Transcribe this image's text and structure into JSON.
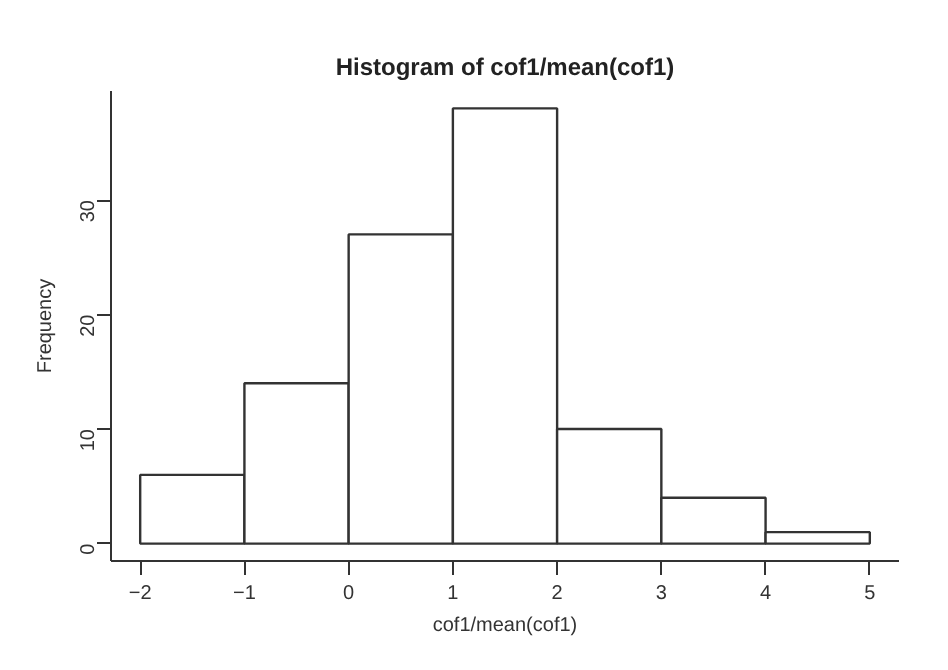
{
  "chart_data": {
    "type": "histogram",
    "title": "Histogram of cof1/mean(cof1)",
    "xlabel": "cof1/mean(cof1)",
    "ylabel": "Frequency",
    "bins": [
      -2,
      -1,
      0,
      1,
      2,
      3,
      4,
      5
    ],
    "values": [
      6,
      14,
      27,
      38,
      10,
      4,
      1
    ],
    "color": "#ffffff",
    "xlim": [
      -2.28,
      5.28
    ],
    "ylim": [
      -1.52,
      39.52
    ],
    "xticks": [
      -2,
      -1,
      0,
      1,
      2,
      3,
      4,
      5
    ],
    "yticks": [
      0,
      10,
      20,
      30
    ],
    "grid": false
  }
}
